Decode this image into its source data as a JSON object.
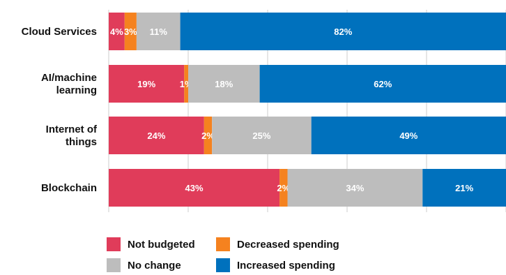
{
  "chart_data": {
    "type": "bar",
    "orientation": "horizontal",
    "stacked": true,
    "categories": [
      "Cloud Services",
      "AI/machine learning",
      "Internet of things",
      "Blockchain"
    ],
    "series": [
      {
        "name": "Not budgeted",
        "color": "#e03c5a",
        "values": [
          4,
          19,
          24,
          43
        ]
      },
      {
        "name": "Decreased spending",
        "color": "#f5821f",
        "values": [
          3,
          1,
          2,
          2
        ]
      },
      {
        "name": "No change",
        "color": "#bdbdbd",
        "values": [
          11,
          18,
          25,
          34
        ]
      },
      {
        "name": "Increased spending",
        "color": "#0071bd",
        "values": [
          82,
          62,
          49,
          21
        ]
      }
    ],
    "value_labels": [
      [
        "4%",
        "3%",
        "11%",
        "82%"
      ],
      [
        "19%",
        "1%",
        "18%",
        "62%"
      ],
      [
        "24%",
        "2%",
        "25%",
        "49%"
      ],
      [
        "43%",
        "2%",
        "34%",
        "21%"
      ]
    ],
    "xlim": [
      0,
      100
    ],
    "grid": true,
    "legend_position": "bottom",
    "title": "",
    "xlabel": "",
    "ylabel": ""
  },
  "legend": {
    "items": [
      {
        "label": "Not budgeted",
        "color": "#e03c5a"
      },
      {
        "label": "Decreased spending",
        "color": "#f5821f"
      },
      {
        "label": "No change",
        "color": "#bdbdbd"
      },
      {
        "label": "Increased spending",
        "color": "#0071bd"
      }
    ]
  }
}
